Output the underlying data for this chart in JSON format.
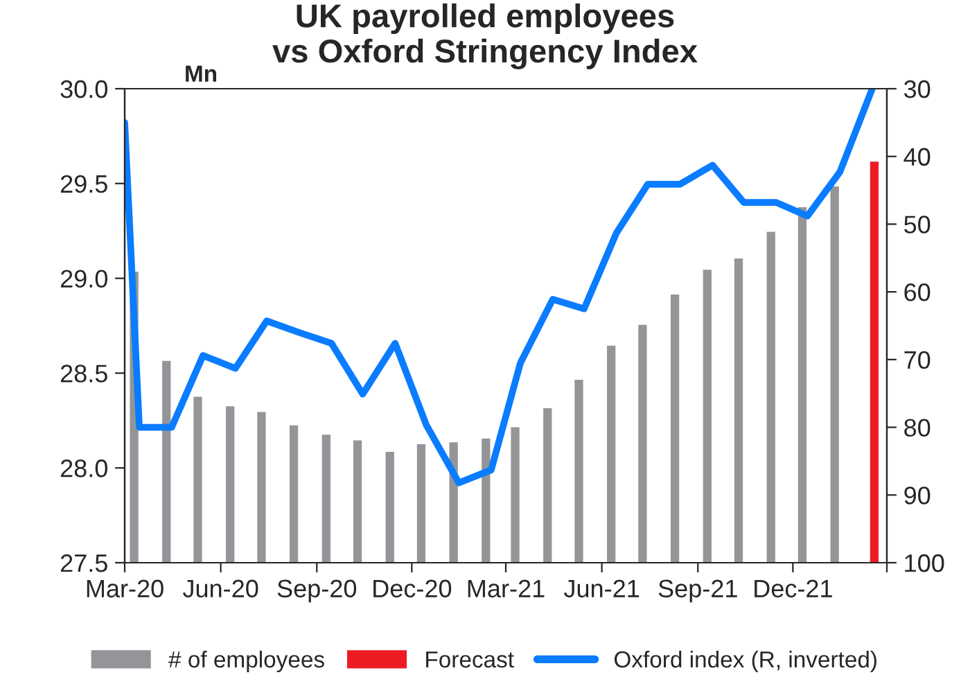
{
  "chart_data": {
    "type": "bar",
    "title": "UK payrolled employees\nvs Oxford Stringency Index",
    "ylabel": "Mn",
    "xlim": [
      "2020-03-01",
      "2022-03-01"
    ],
    "xticks": [
      {
        "value": "2020-03-01",
        "label": "Mar-20"
      },
      {
        "value": "2020-06-01",
        "label": "Jun-20"
      },
      {
        "value": "2020-09-01",
        "label": "Sep-20"
      },
      {
        "value": "2020-12-01",
        "label": "Dec-20"
      },
      {
        "value": "2021-03-01",
        "label": "Mar-21"
      },
      {
        "value": "2021-06-01",
        "label": "Jun-21"
      },
      {
        "value": "2021-09-01",
        "label": "Sep-21"
      },
      {
        "value": "2021-12-01",
        "label": "Dec-21"
      },
      {
        "value": "2022-03-01",
        "label": null
      }
    ],
    "ylim": [
      27.5,
      30.0
    ],
    "yticks": [
      {
        "value": 27.5,
        "label": "27.5"
      },
      {
        "value": 28.0,
        "label": "28.0"
      },
      {
        "value": 28.5,
        "label": "28.5"
      },
      {
        "value": 29.0,
        "label": "29.0"
      },
      {
        "value": 29.5,
        "label": "29.5"
      },
      {
        "value": 30.0,
        "label": "30.0"
      }
    ],
    "y2lim": [
      100,
      30
    ],
    "y2ticks": [
      30,
      40,
      50,
      60,
      70,
      80,
      90,
      100
    ],
    "grid": false,
    "legend": "bottom",
    "series": [
      {
        "name": "# of employees",
        "color": "#939598",
        "x": [
          "2020-03-10",
          "2020-04-10",
          "2020-05-10",
          "2020-06-10",
          "2020-07-10",
          "2020-08-10",
          "2020-09-10",
          "2020-10-10",
          "2020-11-10",
          "2020-12-10",
          "2021-01-10",
          "2021-02-10",
          "2021-03-10",
          "2021-04-10",
          "2021-05-10",
          "2021-06-10",
          "2021-07-10",
          "2021-08-10",
          "2021-09-10",
          "2021-10-10",
          "2021-11-10",
          "2021-12-10",
          "2022-01-10"
        ],
        "values": [
          29.04,
          28.57,
          28.38,
          28.33,
          28.3,
          28.23,
          28.18,
          28.15,
          28.09,
          28.13,
          28.14,
          28.16,
          28.22,
          28.32,
          28.47,
          28.65,
          28.76,
          28.92,
          29.05,
          29.11,
          29.25,
          29.38,
          29.49
        ]
      },
      {
        "name": "Forecast",
        "color": "#ed1c24",
        "x": [
          "2022-02-17"
        ],
        "values": [
          29.62
        ]
      },
      {
        "name": "Oxford index (R, inverted)",
        "type": "line",
        "axis": "y2",
        "color": "#0a7cff",
        "marker": "none",
        "line_style": "solid",
        "x": [
          "2020-03-01",
          "2020-03-15",
          "2020-04-15",
          "2020-05-15",
          "2020-06-15",
          "2020-07-15",
          "2020-08-15",
          "2020-09-15",
          "2020-10-15",
          "2020-11-15",
          "2020-12-15",
          "2021-01-15",
          "2021-02-15",
          "2021-03-15",
          "2021-04-15",
          "2021-05-15",
          "2021-06-15",
          "2021-07-15",
          "2021-08-15",
          "2021-09-15",
          "2021-10-15",
          "2021-11-15",
          "2021-12-15",
          "2022-01-15",
          "2022-02-15"
        ],
        "values": [
          35,
          80,
          80,
          69.4,
          71.3,
          64.3,
          66,
          67.6,
          75.1,
          67.6,
          79.7,
          88.2,
          86.3,
          70.5,
          61.1,
          62.5,
          51.3,
          44.1,
          44.1,
          41.3,
          46.8,
          46.8,
          48.8,
          42.3,
          30
        ]
      }
    ]
  }
}
